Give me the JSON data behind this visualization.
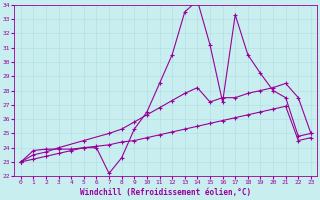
{
  "xlabel": "Windchill (Refroidissement éolien,°C)",
  "bg_color": "#c8eef0",
  "line_color": "#990099",
  "ylim": [
    22,
    34
  ],
  "xlim": [
    -0.5,
    23.5
  ],
  "yticks": [
    22,
    23,
    24,
    25,
    26,
    27,
    28,
    29,
    30,
    31,
    32,
    33,
    34
  ],
  "xticks": [
    0,
    1,
    2,
    3,
    4,
    5,
    6,
    7,
    8,
    9,
    10,
    11,
    12,
    13,
    14,
    15,
    16,
    17,
    18,
    19,
    20,
    21,
    22,
    23
  ],
  "series1_x": [
    0,
    1,
    2,
    3,
    4,
    5,
    6,
    7,
    8,
    9,
    10,
    11,
    12,
    13,
    14,
    15,
    16,
    17,
    18,
    19,
    20,
    21,
    22,
    23
  ],
  "series1_y": [
    23.0,
    23.8,
    23.9,
    23.9,
    23.9,
    24.0,
    24.0,
    22.2,
    23.3,
    25.3,
    26.5,
    28.5,
    30.5,
    33.5,
    34.3,
    31.2,
    27.2,
    33.3,
    30.5,
    29.2,
    28.0,
    27.5,
    24.8,
    25.0
  ],
  "series2_x": [
    0,
    1,
    2,
    3,
    5,
    7,
    8,
    9,
    10,
    11,
    12,
    13,
    14,
    15,
    16,
    17,
    18,
    19,
    20,
    21,
    22,
    23
  ],
  "series2_y": [
    23.0,
    23.5,
    23.7,
    24.0,
    24.5,
    25.0,
    25.3,
    25.8,
    26.3,
    26.8,
    27.3,
    27.8,
    28.2,
    27.2,
    27.5,
    27.5,
    27.8,
    28.0,
    28.2,
    28.5,
    27.5,
    25.0
  ],
  "series3_x": [
    0,
    1,
    2,
    3,
    4,
    5,
    6,
    7,
    8,
    9,
    10,
    11,
    12,
    13,
    14,
    15,
    16,
    17,
    18,
    19,
    20,
    21,
    22,
    23
  ],
  "series3_y": [
    23.0,
    23.2,
    23.4,
    23.6,
    23.8,
    24.0,
    24.1,
    24.2,
    24.4,
    24.5,
    24.7,
    24.9,
    25.1,
    25.3,
    25.5,
    25.7,
    25.9,
    26.1,
    26.3,
    26.5,
    26.7,
    26.9,
    24.5,
    24.7
  ]
}
